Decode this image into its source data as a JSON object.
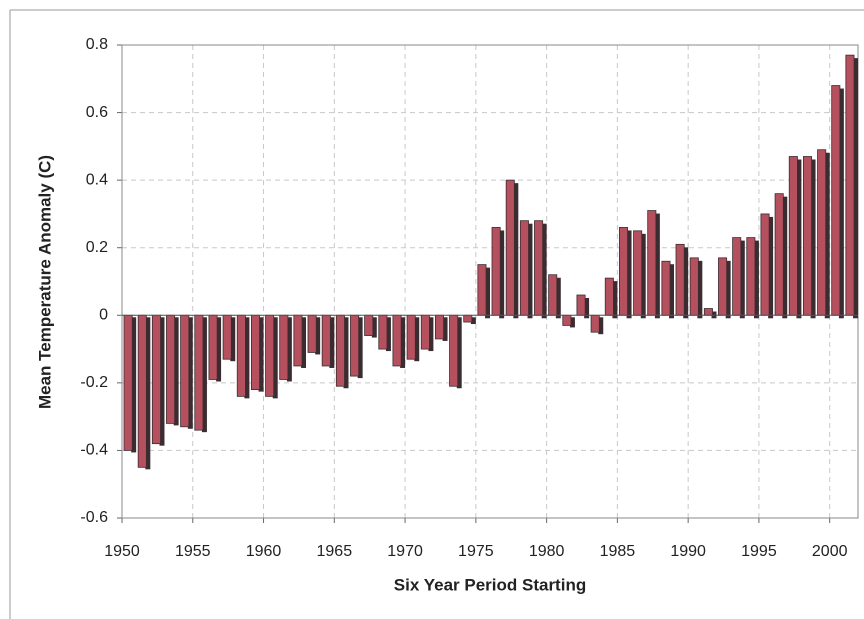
{
  "chart_data": {
    "type": "bar",
    "xlabel": "Six Year Period Starting",
    "ylabel": "Mean Temperature Anomaly (C)",
    "x": [
      1950,
      1951,
      1952,
      1953,
      1954,
      1955,
      1956,
      1957,
      1958,
      1959,
      1960,
      1961,
      1962,
      1963,
      1964,
      1965,
      1966,
      1967,
      1968,
      1969,
      1970,
      1971,
      1972,
      1973,
      1974,
      1975,
      1976,
      1977,
      1978,
      1979,
      1980,
      1981,
      1982,
      1983,
      1984,
      1985,
      1986,
      1987,
      1988,
      1989,
      1990,
      1991,
      1992,
      1993,
      1994,
      1995,
      1996,
      1997,
      1998,
      1999,
      2000,
      2001
    ],
    "series": [
      {
        "color": "#b5505e",
        "values": [
          -0.4,
          -0.45,
          -0.38,
          -0.32,
          -0.33,
          -0.34,
          -0.19,
          -0.13,
          -0.24,
          -0.22,
          -0.24,
          -0.19,
          -0.15,
          -0.11,
          -0.15,
          -0.21,
          -0.18,
          -0.06,
          -0.1,
          -0.15,
          -0.13,
          -0.1,
          -0.07,
          -0.21,
          -0.02,
          0.15,
          0.26,
          0.4,
          0.28,
          0.28,
          0.12,
          -0.03,
          0.06,
          -0.05,
          0.11,
          0.26,
          0.25,
          0.31,
          0.16,
          0.21,
          0.17,
          0.02,
          0.17,
          0.23,
          0.23,
          0.3,
          0.36,
          0.47,
          0.47,
          0.49,
          0.68,
          0.77
        ]
      }
    ],
    "xlim": [
      1950,
      2002
    ],
    "xticks": [
      1950,
      1955,
      1960,
      1965,
      1970,
      1975,
      1980,
      1985,
      1990,
      1995,
      2000
    ],
    "ylim": [
      -0.6,
      0.8
    ],
    "yticks": [
      -0.6,
      -0.4,
      -0.2,
      0,
      0.2,
      0.4,
      0.6,
      0.8
    ],
    "grid": true
  }
}
